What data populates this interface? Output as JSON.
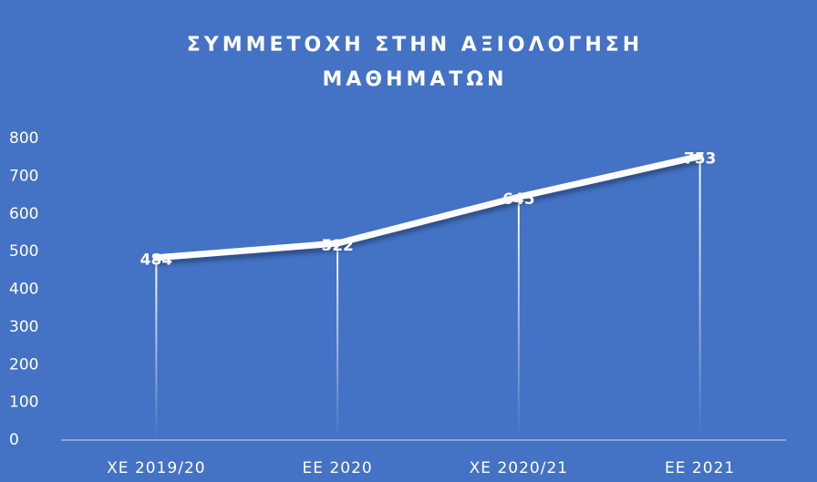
{
  "chart_data": {
    "type": "line",
    "title": [
      "ΣΥΜΜΕΤΟΧΗ ΣΤΗΝ ΑΞΙΟΛΟΓΗΣΗ",
      "ΜΑΘΗΜΑΤΩΝ"
    ],
    "categories": [
      "ΧΕ 2019/20",
      "ΕΕ 2020",
      "ΧΕ 2020/21",
      "ΕΕ 2021"
    ],
    "series": [
      {
        "name": "Συμμετοχή",
        "color": "#ffffff",
        "values": [
          484,
          522,
          645,
          753
        ]
      }
    ],
    "ylim": [
      0,
      800
    ],
    "yticks": [
      0,
      100,
      200,
      300,
      400,
      500,
      600,
      700,
      800
    ],
    "grid": false,
    "drop_lines": true
  }
}
